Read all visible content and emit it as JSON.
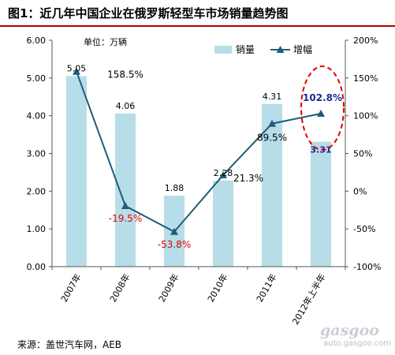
{
  "title": "图1：近几年中国企业在俄罗斯轻型车市场销量趋势图",
  "unit_label": "单位：万辆",
  "source": "来源：盖世汽车网，AEB",
  "watermark": {
    "logo": "gasgoo",
    "url": "auto.gasgoo.com"
  },
  "colors": {
    "bar": "#b7dde8",
    "line": "#1f5c7a",
    "title_rule": "#b40000",
    "highlight": "#e00000",
    "neg_label": "#e00000",
    "emph_label": "#1a2a9c"
  },
  "chart_data": {
    "type": "bar",
    "categories": [
      "2007年",
      "2008年",
      "2009年",
      "2010年",
      "2011年",
      "2012年上半年"
    ],
    "series": [
      {
        "name": "销量",
        "type": "bar",
        "axis": "left",
        "values": [
          5.05,
          4.06,
          1.88,
          2.28,
          4.31,
          3.31
        ],
        "labels": [
          "5.05",
          "4.06",
          "1.88",
          "2.28",
          "4.31",
          "3.31"
        ]
      },
      {
        "name": "增幅",
        "type": "line",
        "axis": "right",
        "values": [
          158.5,
          -19.5,
          -53.8,
          21.3,
          89.5,
          102.8
        ],
        "labels": [
          "158.5%",
          "-19.5%",
          "-53.8%",
          "21.3%",
          "89.5%",
          "102.8%"
        ]
      }
    ],
    "y_left": {
      "min": 0,
      "max": 6,
      "ticks": [
        "0.00",
        "1.00",
        "2.00",
        "3.00",
        "4.00",
        "5.00",
        "6.00"
      ]
    },
    "y_right": {
      "min": -100,
      "max": 200,
      "ticks": [
        "-100%",
        "-50%",
        "0%",
        "50%",
        "100%",
        "150%",
        "200%"
      ]
    },
    "legend": {
      "position": "top-right",
      "items": [
        "销量",
        "增幅"
      ]
    },
    "grid": false,
    "highlight": "2012年上半年"
  }
}
